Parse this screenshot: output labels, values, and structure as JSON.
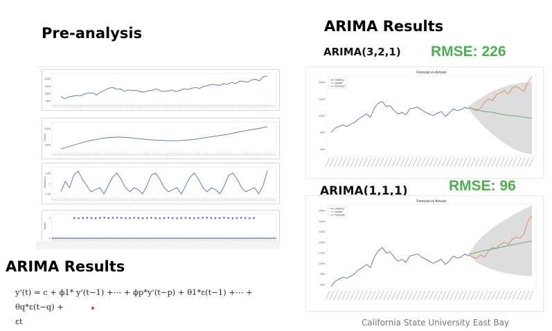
{
  "headings": {
    "pre_analysis": "Pre-analysis",
    "arima_results_right": "ARIMA Results",
    "arima_results_left": "ARIMA Results"
  },
  "models": [
    {
      "label": "ARIMA(3,2,1)",
      "rmse": "RMSE: 226"
    },
    {
      "label": "ARIMA(1,1,1)",
      "rmse": "RMSE: 96"
    }
  ],
  "formula": {
    "line1": "y'(t) = c + ϕ1* y'(t−1) +⋯ + ϕp*y'(t−p) + θ1*ε(t−1) +⋯ + θq*ε(t−q) +",
    "line2": "εt"
  },
  "footer": "California State University East Bay",
  "colors": {
    "training": "#4c72b0",
    "actual": "#dd8452",
    "forecast": "#55a868",
    "rmse": "#4caf50",
    "band": "#d9d9d9"
  },
  "chart_data": [
    {
      "type": "line",
      "panel": "decomposition-observed",
      "series": [
        {
          "values": [
            920,
            860,
            905,
            930,
            950,
            940,
            990,
            1010,
            1020,
            960,
            1040,
            1090,
            1140,
            1170,
            1120,
            1130,
            1060,
            1100,
            1080,
            1090,
            1050,
            1040,
            1080,
            1090,
            1130,
            1080,
            1060,
            1070,
            1100,
            1050,
            1090,
            1130,
            1110,
            1150,
            1160,
            1140,
            1200,
            1220,
            1250,
            1240,
            1220,
            1270,
            1260,
            1300,
            1270,
            1340,
            1330,
            1310,
            1370,
            1390,
            1350,
            1460,
            1480
          ]
        }
      ],
      "ylim": [
        700,
        1550
      ],
      "yticks": [
        1400,
        1200,
        1000,
        800
      ]
    },
    {
      "type": "line",
      "panel": "decomposition-trend",
      "ylabel": "Trend",
      "series": [
        {
          "values": [
            950,
            980,
            1010,
            1040,
            1060,
            1080,
            1090,
            1095,
            1090,
            1080,
            1070,
            1060,
            1055,
            1050,
            1050,
            1055,
            1065,
            1080,
            1095,
            1110,
            1125,
            1145,
            1165,
            1185,
            1200,
            1220
          ]
        }
      ],
      "ylim": [
        900,
        1280
      ],
      "yticks": [
        1200,
        1000
      ]
    },
    {
      "type": "line",
      "panel": "decomposition-seasonal",
      "ylabel": "Seasonal",
      "series": [
        {
          "values": [
            0.96,
            1.01,
            0.98,
            1.04,
            1.06,
            1.02,
            0.99,
            0.96,
            0.97,
            0.98,
            0.95,
            0.99,
            1.03,
            1.05,
            1.02,
            0.98,
            0.96,
            0.98,
            0.97,
            0.95,
            0.99,
            1.04,
            1.05,
            1.02,
            0.98,
            0.96,
            0.97,
            0.98,
            0.95,
            0.99,
            1.03,
            1.05,
            1.02,
            0.98,
            0.96,
            0.98,
            0.97,
            0.95,
            0.99,
            1.04,
            1.05,
            1.02,
            0.98,
            0.96,
            0.97,
            0.98,
            0.95,
            0.99,
            1.06
          ]
        }
      ],
      "ylim": [
        0.93,
        1.08
      ],
      "yticks": [
        1.05,
        1.0,
        0.95
      ]
    },
    {
      "type": "scatter",
      "panel": "decomposition-residual",
      "ylabel": "Resid",
      "series": [
        {
          "values": [
            1.0,
            0.99,
            1.0,
            1.01,
            1.0,
            0.99,
            1.01,
            1.02,
            1.0,
            1.01,
            1.02,
            1.0,
            0.99,
            1.0,
            1.01,
            1.0,
            0.99,
            1.0,
            1.01,
            1.0,
            0.99,
            1.0,
            1.01,
            1.0,
            0.99,
            1.0,
            1.01,
            1.0,
            0.99,
            1.0,
            1.01,
            1.02,
            1.0,
            0.99,
            1.0,
            1.01,
            1.0,
            0.99,
            1.0,
            1.01,
            1.0,
            0.99,
            1.0
          ]
        }
      ],
      "ylim": [
        0.0,
        1.2
      ],
      "yticks": [
        1.0,
        0.0
      ]
    },
    {
      "type": "line",
      "panel": "arima-321-forecast",
      "title": "Forecast vs Actuals",
      "legend": [
        "training",
        "actual",
        "forecast"
      ],
      "legend_position": "top-left",
      "ylim": [
        520,
        1480
      ],
      "yticks": [
        1400,
        1200,
        1000,
        800,
        600
      ],
      "training": [
        800,
        850,
        870,
        890,
        870,
        900,
        920,
        960,
        990,
        1020,
        980,
        1090,
        1150,
        1170,
        1110,
        1120,
        1060,
        1020,
        1040,
        1010,
        1080,
        1090,
        1100,
        1070,
        1040,
        1020,
        1000,
        1030,
        1050,
        990,
        1030,
        1080,
        1060,
        1070,
        1100,
        1080
      ],
      "actual": [
        1100,
        1080,
        1060,
        1090,
        1160,
        1200,
        1180,
        1250,
        1270,
        1300,
        1260,
        1330,
        1350,
        1320,
        1290,
        1400,
        1460
      ],
      "forecast": [
        1095,
        1080,
        1070,
        1060,
        1050,
        1045,
        1040,
        1030,
        1020,
        1010,
        1005,
        1000,
        995,
        990,
        980,
        975,
        970
      ],
      "lower": [
        1080,
        1010,
        960,
        910,
        860,
        820,
        780,
        740,
        700,
        670,
        640,
        610,
        590,
        570,
        555,
        545,
        540
      ],
      "upper": [
        1110,
        1150,
        1180,
        1210,
        1240,
        1270,
        1290,
        1310,
        1330,
        1345,
        1360,
        1370,
        1380,
        1390,
        1395,
        1400,
        1405
      ]
    },
    {
      "type": "line",
      "panel": "arima-111-forecast",
      "title": "Forecast vs Actuals",
      "legend": [
        "training",
        "actual",
        "forecast"
      ],
      "legend_position": "top-left",
      "ylim": [
        760,
        1560
      ],
      "yticks": [
        1500,
        1400,
        1300,
        1200,
        1100,
        1000,
        900,
        800
      ],
      "training": [
        780,
        830,
        850,
        870,
        860,
        880,
        900,
        940,
        960,
        990,
        960,
        1060,
        1120,
        1150,
        1100,
        1110,
        1060,
        1020,
        1040,
        1010,
        1070,
        1080,
        1090,
        1060,
        1040,
        1020,
        1000,
        1020,
        1040,
        990,
        1020,
        1070,
        1050,
        1060,
        1090,
        1070
      ],
      "actual": [
        1080,
        1060,
        1050,
        1080,
        1060,
        1120,
        1150,
        1140,
        1180,
        1200,
        1180,
        1230,
        1250,
        1240,
        1280,
        1400,
        1450
      ],
      "forecast": [
        1085,
        1095,
        1105,
        1115,
        1122,
        1130,
        1138,
        1145,
        1152,
        1160,
        1168,
        1175,
        1182,
        1190,
        1198,
        1205,
        1212
      ],
      "lower": [
        1075,
        1040,
        1010,
        990,
        970,
        955,
        940,
        930,
        920,
        910,
        905,
        898,
        892,
        888,
        884,
        880,
        878
      ],
      "upper": [
        1095,
        1150,
        1200,
        1240,
        1275,
        1305,
        1335,
        1360,
        1385,
        1410,
        1430,
        1455,
        1475,
        1495,
        1515,
        1530,
        1550
      ]
    }
  ]
}
